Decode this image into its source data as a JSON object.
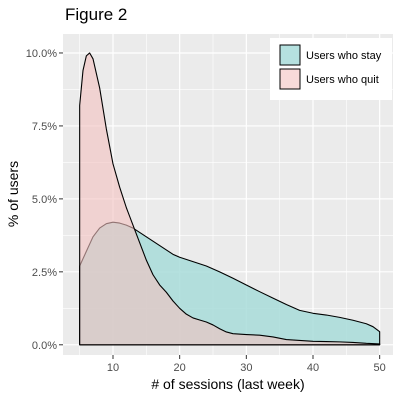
{
  "chart_data": {
    "type": "area",
    "title": "Figure 2",
    "xlabel": "# of sessions (last week)",
    "ylabel": "% of users",
    "xlim": [
      2.5,
      52
    ],
    "ylim": [
      -0.0035,
      0.1065
    ],
    "x_ticks": [
      10,
      20,
      30,
      40,
      50
    ],
    "x_tick_labels": [
      "10",
      "20",
      "30",
      "40",
      "50"
    ],
    "y_ticks": [
      0,
      0.025,
      0.05,
      0.075,
      0.1
    ],
    "y_tick_labels": [
      "0.0%",
      "2.5%",
      "5.0%",
      "7.5%",
      "10.0%"
    ],
    "grid": true,
    "legend_position": "top-right",
    "series": [
      {
        "name": "Users who stay",
        "color": "#a8dcd9",
        "points": [
          [
            5,
            0.027
          ],
          [
            6,
            0.032
          ],
          [
            7,
            0.037
          ],
          [
            8,
            0.04
          ],
          [
            9,
            0.0415
          ],
          [
            10,
            0.042
          ],
          [
            11,
            0.0417
          ],
          [
            12,
            0.041
          ],
          [
            13,
            0.04
          ],
          [
            14,
            0.0385
          ],
          [
            15,
            0.037
          ],
          [
            16,
            0.0355
          ],
          [
            17,
            0.034
          ],
          [
            18,
            0.0325
          ],
          [
            19,
            0.031
          ],
          [
            20,
            0.03
          ],
          [
            22,
            0.0285
          ],
          [
            24,
            0.027
          ],
          [
            26,
            0.025
          ],
          [
            28,
            0.0228
          ],
          [
            30,
            0.0205
          ],
          [
            32,
            0.0182
          ],
          [
            34,
            0.016
          ],
          [
            36,
            0.0138
          ],
          [
            38,
            0.0118
          ],
          [
            40,
            0.0108
          ],
          [
            42,
            0.0102
          ],
          [
            44,
            0.0094
          ],
          [
            46,
            0.0084
          ],
          [
            48,
            0.0072
          ],
          [
            49,
            0.0062
          ],
          [
            50,
            0.0045
          ]
        ]
      },
      {
        "name": "Users who quit",
        "color": "#f4c2c0",
        "points": [
          [
            5,
            0.082
          ],
          [
            5.5,
            0.094
          ],
          [
            6,
            0.099
          ],
          [
            6.5,
            0.1
          ],
          [
            7,
            0.098
          ],
          [
            8,
            0.088
          ],
          [
            9,
            0.074
          ],
          [
            10,
            0.062
          ],
          [
            11,
            0.054
          ],
          [
            12,
            0.047
          ],
          [
            13,
            0.041
          ],
          [
            14,
            0.035
          ],
          [
            15,
            0.029
          ],
          [
            16,
            0.024
          ],
          [
            17,
            0.0205
          ],
          [
            18,
            0.018
          ],
          [
            19,
            0.015
          ],
          [
            20,
            0.0125
          ],
          [
            21,
            0.0105
          ],
          [
            22,
            0.0092
          ],
          [
            23,
            0.0085
          ],
          [
            24,
            0.0078
          ],
          [
            25,
            0.0068
          ],
          [
            26,
            0.0055
          ],
          [
            27,
            0.0044
          ],
          [
            28,
            0.0038
          ],
          [
            30,
            0.0035
          ],
          [
            32,
            0.0033
          ],
          [
            34,
            0.0027
          ],
          [
            36,
            0.0018
          ],
          [
            38,
            0.0015
          ],
          [
            40,
            0.0012
          ],
          [
            42,
            0.0011
          ],
          [
            44,
            0.001
          ],
          [
            46,
            0.0008
          ],
          [
            48,
            0.0005
          ],
          [
            50,
            0.0003
          ]
        ]
      }
    ]
  }
}
